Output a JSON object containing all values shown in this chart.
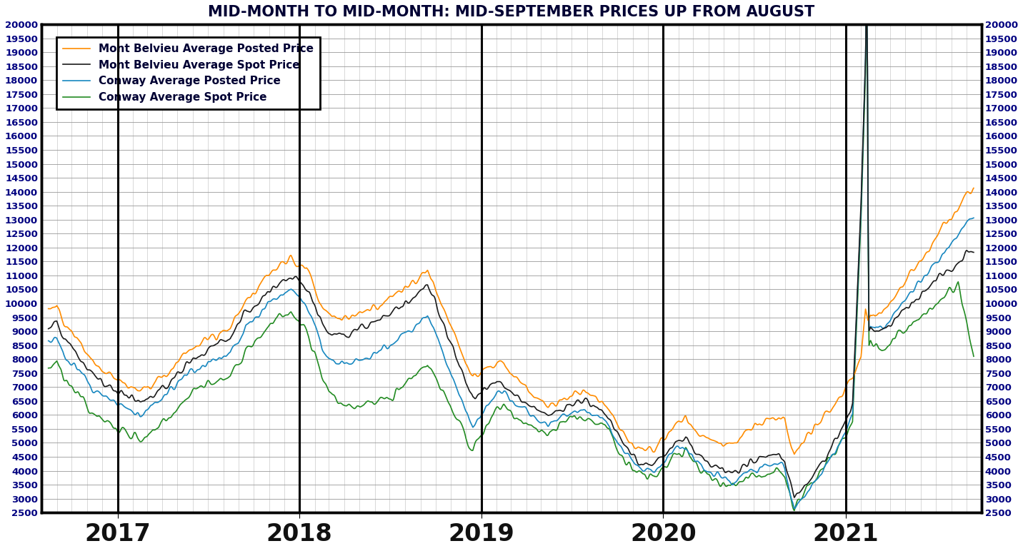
{
  "title": "MID-MONTH TO MID-MONTH: MID-SEPTEMBER PRICES UP FROM AUGUST",
  "ylim": [
    2500,
    20000
  ],
  "yticks": [
    2500,
    3000,
    3500,
    4000,
    4500,
    5000,
    5500,
    6000,
    6500,
    7000,
    7500,
    8000,
    8500,
    9000,
    9500,
    10000,
    10500,
    11000,
    11500,
    12000,
    12500,
    13000,
    13500,
    14000,
    14500,
    15000,
    15500,
    16000,
    16500,
    17000,
    17500,
    18000,
    18500,
    19000,
    19500,
    20000
  ],
  "colors": {
    "mb_posted": "#FF8C00",
    "mb_spot": "#1A1A1A",
    "conway_posted": "#1787C0",
    "conway_spot": "#228B22"
  },
  "legend_labels": [
    "Mont Belvieu Average Posted Price",
    "Mont Belvieu Average Spot Price",
    "Conway Average Posted Price",
    "Conway Average Spot Price"
  ],
  "background_color": "#FFFFFF",
  "grid_color": "#888888",
  "title_color": "#000033",
  "tick_color": "#000080",
  "line_width": 1.2
}
